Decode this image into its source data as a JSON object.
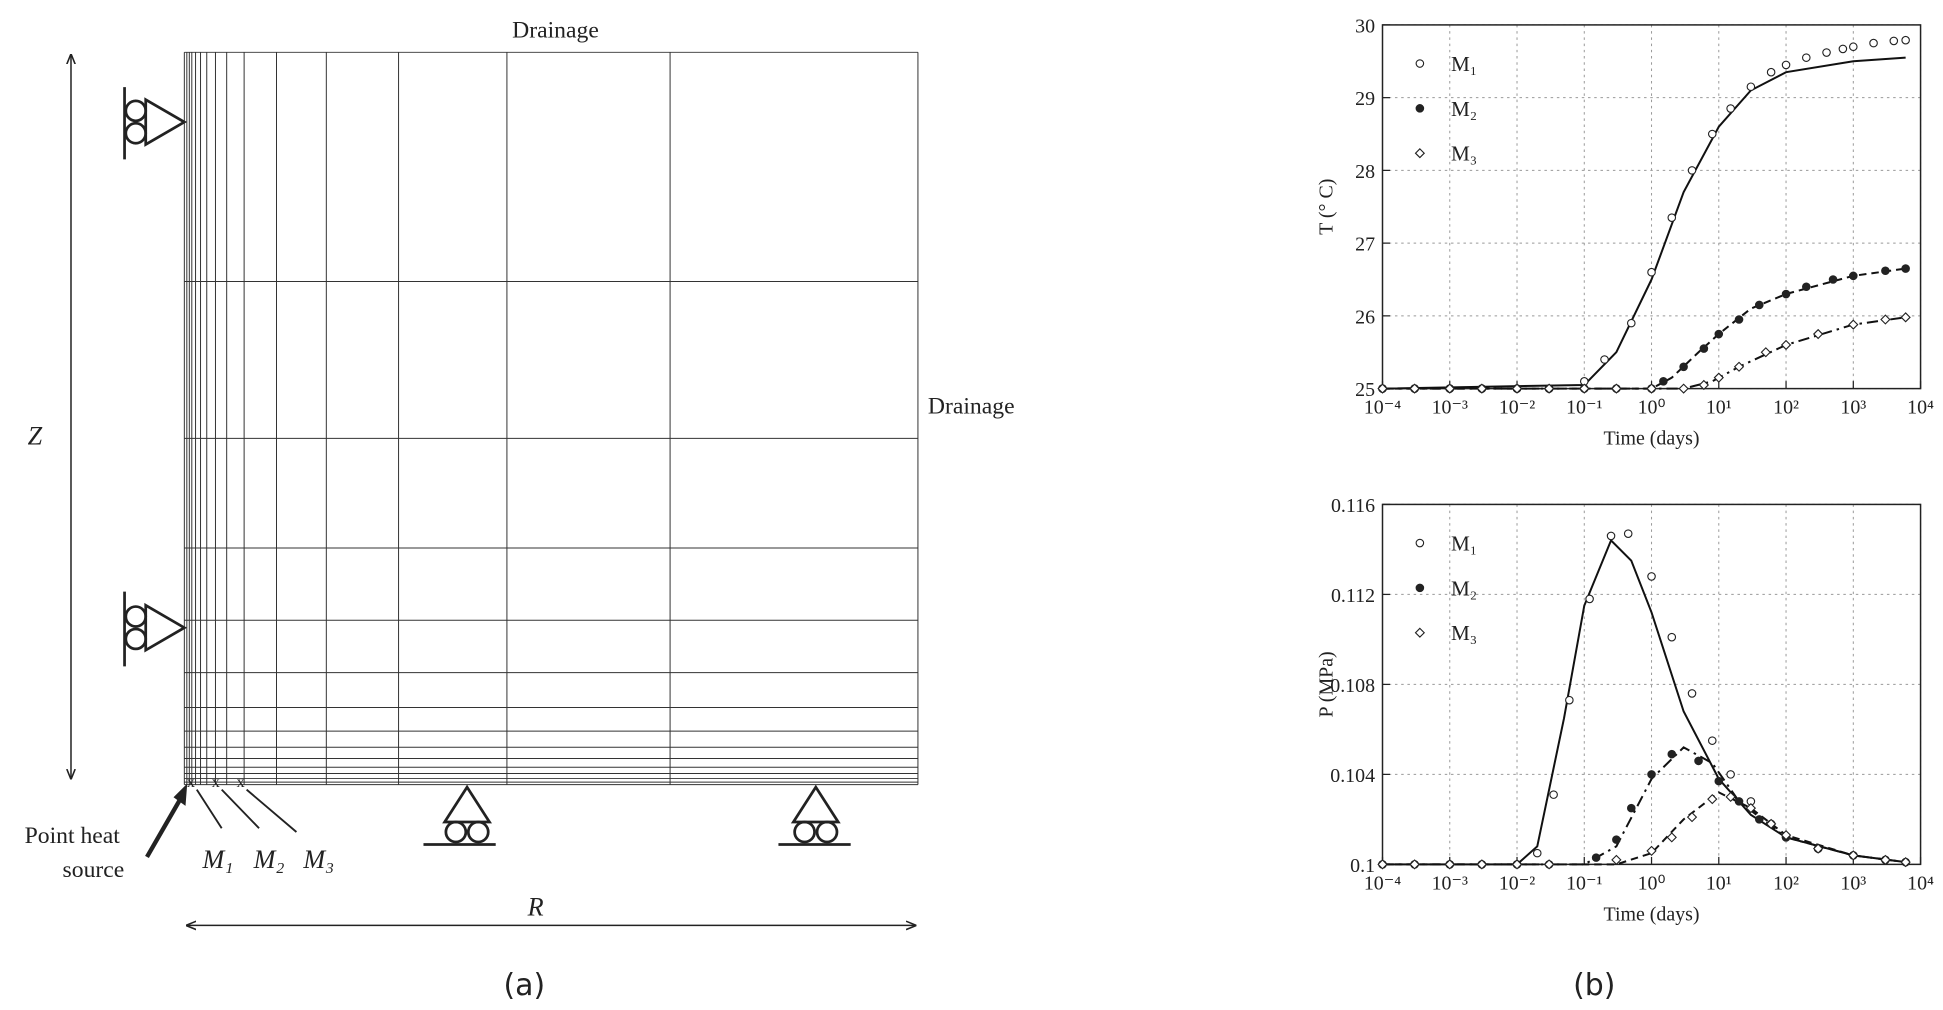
{
  "diagram": {
    "top_label": "Drainage",
    "right_label": "Drainage",
    "height_label": "Z",
    "width_label": "R",
    "source_label": [
      "Point heat",
      "source"
    ],
    "point_labels": [
      "M₁",
      "M₂",
      "M₃"
    ]
  },
  "panel_labels": [
    "(a)",
    "(b)"
  ],
  "chart_data": [
    {
      "type": "line",
      "xlabel": "Time (days)",
      "ylabel": "T (° C)",
      "xscale": "log",
      "grid": true,
      "xlim": [
        0.0001,
        10000
      ],
      "xticks": [
        {
          "value": 0.0001,
          "label": "10⁻⁴"
        },
        {
          "value": 0.001,
          "label": "10⁻³"
        },
        {
          "value": 0.01,
          "label": "10⁻²"
        },
        {
          "value": 0.1,
          "label": "10⁻¹"
        },
        {
          "value": 1,
          "label": "10⁰"
        },
        {
          "value": 10,
          "label": "10¹"
        },
        {
          "value": 100,
          "label": "10²"
        },
        {
          "value": 1000,
          "label": "10³"
        },
        {
          "value": 10000,
          "label": "10⁴"
        }
      ],
      "ylim": [
        25,
        30
      ],
      "yticks": [
        25,
        26,
        27,
        28,
        29,
        30
      ],
      "series": [
        {
          "name": "M₁",
          "marker": "open-circle",
          "color": "#222222",
          "x": [
            0.0001,
            0.0003,
            0.001,
            0.003,
            0.01,
            0.03,
            0.1,
            0.2,
            0.5,
            1,
            2,
            4,
            8,
            15,
            30,
            60,
            100,
            200,
            400,
            700,
            1000,
            2000,
            4000,
            6000
          ],
          "values": [
            25,
            25,
            25,
            25,
            25,
            25,
            25.1,
            25.4,
            25.9,
            26.6,
            27.35,
            28.0,
            28.5,
            28.85,
            29.15,
            29.35,
            29.45,
            29.55,
            29.62,
            29.67,
            29.7,
            29.75,
            29.78,
            29.79
          ]
        },
        {
          "name": "M₂",
          "marker": "filled-circle",
          "color": "#222222",
          "x": [
            0.0001,
            0.0003,
            0.001,
            0.003,
            0.01,
            0.03,
            0.1,
            0.3,
            1,
            1.5,
            3,
            6,
            10,
            20,
            40,
            100,
            200,
            500,
            1000,
            3000,
            6000
          ],
          "values": [
            25,
            25,
            25,
            25,
            25,
            25,
            25,
            25,
            25,
            25.1,
            25.3,
            25.55,
            25.75,
            25.95,
            26.15,
            26.3,
            26.4,
            26.5,
            26.55,
            26.62,
            26.65
          ]
        },
        {
          "name": "M₃",
          "marker": "open-diamond",
          "color": "#222222",
          "x": [
            0.0001,
            0.0003,
            0.001,
            0.003,
            0.01,
            0.03,
            0.1,
            0.3,
            1,
            3,
            6,
            10,
            20,
            50,
            100,
            300,
            1000,
            3000,
            6000
          ],
          "values": [
            25,
            25,
            25,
            25,
            25,
            25,
            25,
            25,
            25,
            25,
            25.05,
            25.15,
            25.3,
            25.5,
            25.6,
            25.75,
            25.88,
            25.95,
            25.98
          ]
        }
      ],
      "curves": [
        {
          "style": "solid",
          "color": "#111111",
          "x": [
            0.0001,
            0.1,
            0.3,
            1,
            3,
            10,
            30,
            100,
            1000,
            6000
          ],
          "values": [
            25,
            25.05,
            25.5,
            26.5,
            27.7,
            28.6,
            29.1,
            29.35,
            29.5,
            29.55
          ]
        },
        {
          "style": "dashed",
          "color": "#111111",
          "x": [
            0.0001,
            1,
            2,
            5,
            10,
            30,
            100,
            1000,
            6000
          ],
          "values": [
            25,
            25,
            25.15,
            25.5,
            25.75,
            26.1,
            26.3,
            26.55,
            26.65
          ]
        },
        {
          "style": "dash-dot",
          "color": "#111111",
          "x": [
            0.0001,
            3,
            8,
            20,
            100,
            1000,
            6000
          ],
          "values": [
            25,
            25,
            25.1,
            25.3,
            25.6,
            25.88,
            25.98
          ]
        }
      ]
    },
    {
      "type": "line",
      "xlabel": "Time (days)",
      "ylabel": "P (MPa)",
      "xscale": "log",
      "grid": true,
      "xlim": [
        0.0001,
        10000
      ],
      "xticks": [
        {
          "value": 0.0001,
          "label": "10⁻⁴"
        },
        {
          "value": 0.001,
          "label": "10⁻³"
        },
        {
          "value": 0.01,
          "label": "10⁻²"
        },
        {
          "value": 0.1,
          "label": "10⁻¹"
        },
        {
          "value": 1,
          "label": "10⁰"
        },
        {
          "value": 10,
          "label": "10¹"
        },
        {
          "value": 100,
          "label": "10²"
        },
        {
          "value": 1000,
          "label": "10³"
        },
        {
          "value": 10000,
          "label": "10⁴"
        }
      ],
      "ylim": [
        0.1,
        0.116
      ],
      "yticks": [
        0.1,
        0.104,
        0.108,
        0.112,
        0.116
      ],
      "series": [
        {
          "name": "M₁",
          "marker": "open-circle",
          "color": "#222222",
          "x": [
            0.0001,
            0.0003,
            0.001,
            0.003,
            0.01,
            0.02,
            0.035,
            0.06,
            0.12,
            0.25,
            0.45,
            1,
            2,
            4,
            8,
            15,
            30,
            60,
            100,
            300,
            1000,
            3000,
            6000
          ],
          "values": [
            0.1,
            0.1,
            0.1,
            0.1,
            0.1,
            0.1005,
            0.1031,
            0.1073,
            0.1118,
            0.1146,
            0.1147,
            0.1128,
            0.1101,
            0.1076,
            0.1055,
            0.104,
            0.1028,
            0.1018,
            0.1012,
            0.1007,
            0.1004,
            0.1002,
            0.1001
          ]
        },
        {
          "name": "M₂",
          "marker": "filled-circle",
          "color": "#222222",
          "x": [
            0.0001,
            0.0003,
            0.001,
            0.003,
            0.01,
            0.03,
            0.15,
            0.3,
            0.5,
            1,
            2,
            5,
            10,
            20,
            40,
            100,
            300,
            1000,
            3000,
            6000
          ],
          "values": [
            0.1,
            0.1,
            0.1,
            0.1,
            0.1,
            0.1,
            0.1003,
            0.1011,
            0.1025,
            0.104,
            0.1049,
            0.1046,
            0.1037,
            0.1028,
            0.102,
            0.1012,
            0.1007,
            0.1004,
            0.1002,
            0.1001
          ]
        },
        {
          "name": "M₃",
          "marker": "open-diamond",
          "color": "#222222",
          "x": [
            0.0001,
            0.0003,
            0.001,
            0.003,
            0.01,
            0.03,
            0.3,
            1,
            2,
            4,
            8,
            15,
            30,
            60,
            100,
            300,
            1000,
            3000,
            6000
          ],
          "values": [
            0.1,
            0.1,
            0.1,
            0.1,
            0.1,
            0.1,
            0.1002,
            0.1006,
            0.1012,
            0.1021,
            0.1029,
            0.103,
            0.1025,
            0.1018,
            0.1013,
            0.1007,
            0.1004,
            0.1002,
            0.1001
          ]
        }
      ],
      "curves": [
        {
          "style": "solid",
          "color": "#111111",
          "x": [
            0.0001,
            0.01,
            0.02,
            0.05,
            0.1,
            0.25,
            0.5,
            1,
            3,
            10,
            30,
            100,
            1000,
            6000
          ],
          "values": [
            0.1,
            0.1,
            0.1008,
            0.1065,
            0.1115,
            0.1144,
            0.1135,
            0.1112,
            0.1068,
            0.1038,
            0.1022,
            0.1012,
            0.1004,
            0.1001
          ]
        },
        {
          "style": "dash-dot",
          "color": "#111111",
          "x": [
            0.0001,
            0.1,
            0.3,
            1,
            3,
            8,
            20,
            100,
            1000,
            6000
          ],
          "values": [
            0.1,
            0.1,
            0.1008,
            0.1038,
            0.1052,
            0.1045,
            0.1028,
            0.1012,
            0.1004,
            0.1001
          ]
        },
        {
          "style": "dashed",
          "color": "#111111",
          "x": [
            0.0001,
            0.3,
            1,
            3,
            10,
            30,
            100,
            1000,
            6000
          ],
          "values": [
            0.1,
            0.1,
            0.1005,
            0.102,
            0.1032,
            0.1025,
            0.1013,
            0.1004,
            0.1001
          ]
        }
      ]
    }
  ]
}
